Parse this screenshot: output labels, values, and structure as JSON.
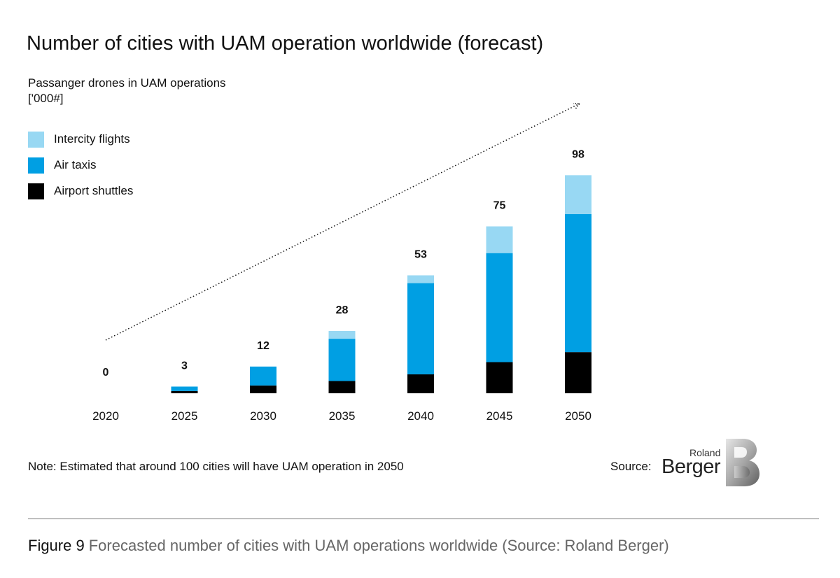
{
  "chart_data": {
    "type": "bar",
    "stacked": true,
    "title": "Number of cities with UAM operation worldwide (forecast)",
    "ylabel_lines": [
      "Passanger drones in UAM operations",
      "['000#]"
    ],
    "categories": [
      "2020",
      "2025",
      "2030",
      "2035",
      "2040",
      "2045",
      "2050"
    ],
    "series": [
      {
        "name": "Airport shuttles",
        "color": "#000000",
        "values": [
          0,
          1,
          3.5,
          5.5,
          8.5,
          14,
          18.5
        ]
      },
      {
        "name": "Air taxis",
        "color": "#009FE3",
        "values": [
          0,
          2,
          8.5,
          19,
          41,
          49,
          62
        ]
      },
      {
        "name": "Intercity flights",
        "color": "#98D8F3",
        "values": [
          0,
          0,
          0,
          3.5,
          3.5,
          12,
          17.5
        ]
      }
    ],
    "totals": [
      "0",
      "3",
      "12",
      "28",
      "53",
      "75",
      "98"
    ],
    "legend_order": [
      "Intercity flights",
      "Air taxis",
      "Airport shuttles"
    ],
    "legend_position": "top-left",
    "ylim": [
      0,
      100
    ],
    "grid": false,
    "trend_arrow": "dotted"
  },
  "note": "Note: Estimated that around 100 cities will have UAM operation in 2050",
  "source_label": "Source:",
  "logo": {
    "line1": "Roland",
    "line2": "Berger"
  },
  "caption": {
    "figure": "Figure 9",
    "text": "Forecasted number of cities with UAM operations worldwide (Source: Roland Berger)"
  }
}
